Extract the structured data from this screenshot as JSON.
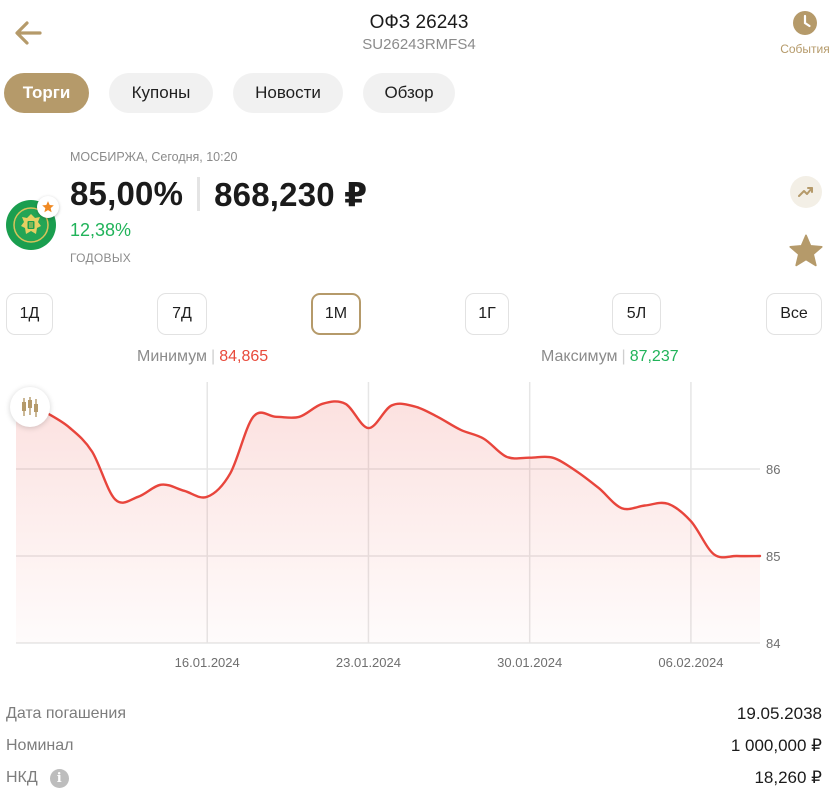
{
  "header": {
    "title": "ОФЗ 26243",
    "subtitle": "SU26243RMFS4",
    "events_label": "События"
  },
  "tabs": [
    {
      "label": "Торги",
      "active": true
    },
    {
      "label": "Купоны",
      "active": false
    },
    {
      "label": "Новости",
      "active": false
    },
    {
      "label": "Обзор",
      "active": false
    }
  ],
  "quote": {
    "exchange_line": "МОСБИРЖА, Сегодня, 10:20",
    "price_percent": "85,00%",
    "price_rub": "868,230 ₽",
    "yield": "12,38%",
    "yield_label": "ГОДОВЫХ"
  },
  "periods": [
    {
      "label": "1Д",
      "active": false
    },
    {
      "label": "7Д",
      "active": false
    },
    {
      "label": "1М",
      "active": true
    },
    {
      "label": "1Г",
      "active": false
    },
    {
      "label": "5Л",
      "active": false
    },
    {
      "label": "Все",
      "active": false
    }
  ],
  "range": {
    "min_label": "Минимум",
    "min_value": "84,865",
    "max_label": "Максимум",
    "max_value": "87,237"
  },
  "chart_data": {
    "type": "area",
    "ylim": [
      84,
      87
    ],
    "y_ticks": [
      "86",
      "85",
      "84"
    ],
    "x_ticks": [
      "16.01.2024",
      "23.01.2024",
      "30.01.2024",
      "06.02.2024"
    ],
    "grid": true,
    "line_color": "#e8453c",
    "x": [
      "2024-01-09",
      "2024-01-10",
      "2024-01-11",
      "2024-01-12",
      "2024-01-13",
      "2024-01-14",
      "2024-01-15",
      "2024-01-16",
      "2024-01-17",
      "2024-01-18",
      "2024-01-19",
      "2024-01-20",
      "2024-01-21",
      "2024-01-22",
      "2024-01-23",
      "2024-01-24",
      "2024-01-25",
      "2024-01-26",
      "2024-01-27",
      "2024-01-28",
      "2024-01-29",
      "2024-01-30",
      "2024-01-31",
      "2024-02-01",
      "2024-02-02",
      "2024-02-03",
      "2024-02-04",
      "2024-02-05",
      "2024-02-06",
      "2024-02-07",
      "2024-02-08",
      "2024-02-09"
    ],
    "values": [
      86.65,
      86.48,
      86.2,
      85.65,
      85.68,
      85.82,
      85.75,
      85.68,
      85.95,
      86.6,
      86.6,
      86.6,
      86.75,
      86.75,
      86.47,
      86.73,
      86.72,
      86.6,
      86.45,
      86.35,
      86.14,
      86.13,
      86.13,
      85.98,
      85.78,
      85.55,
      85.58,
      85.6,
      85.4,
      85.02,
      85.0,
      85.0
    ]
  },
  "info": [
    {
      "label": "Дата погашения",
      "value": "19.05.2038",
      "has_icon": false
    },
    {
      "label": "Номинал",
      "value": "1 000,000 ₽",
      "has_icon": false
    },
    {
      "label": "НКД",
      "value": "18,260 ₽",
      "has_icon": true,
      "icon_glyph": "i"
    }
  ],
  "icons": {
    "back": "arrow-left-icon",
    "events": "clock-icon",
    "trend": "trending-up-icon",
    "favorite": "star-icon",
    "candles": "candlestick-icon",
    "info": "info-icon"
  },
  "colors": {
    "accent": "#b59a6a",
    "green": "#21b35a",
    "red": "#e84a3b"
  }
}
